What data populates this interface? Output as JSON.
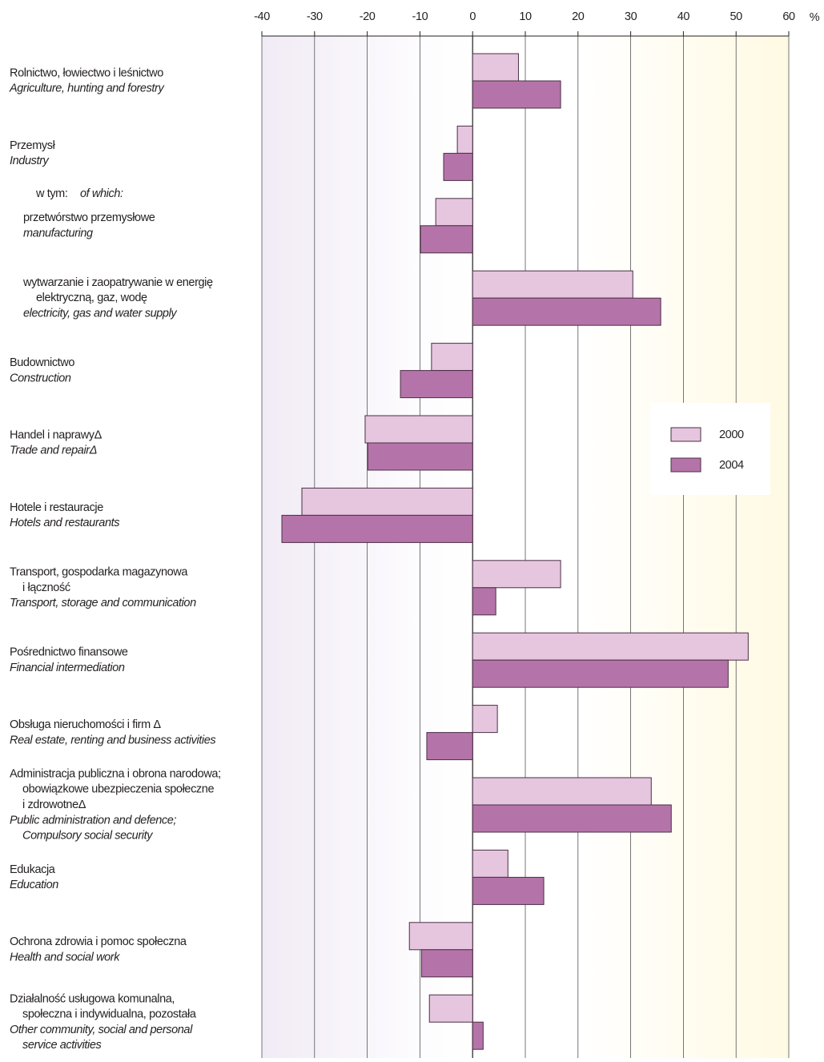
{
  "chart_data": {
    "type": "bar",
    "orientation": "horizontal",
    "x_unit": "%",
    "subheading": [
      "w tym:",
      "of which:"
    ],
    "categories": [
      "Rolnictwo, łowiectwo i leśnictwo",
      "Przemysł",
      "przetwórstwo przemysłowe",
      "wytwarzanie i zaopatrywanie w energię\nelektryczną, gaz, wodę",
      "Budownictwo",
      "Handel i naprawyΔ",
      "Hotele i restauracje",
      "Transport, gospodarka magazynowa\ni łączność",
      "Pośrednictwo finansowe",
      "Obsługa nieruchomości i firm Δ",
      "Administracja publiczna i obrona narodowa;\nobowiązkowe ubezpieczenia społeczne\ni zdrowotneΔ",
      "Edukacja",
      "Ochrona zdrowia i pomoc społeczna",
      "Działalność usługowa komunalna,\nspołeczna i indywidualna, pozostała"
    ],
    "categories_en": [
      "Agriculture, hunting and forestry",
      "Industry",
      "manufacturing",
      "electricity, gas and water supply",
      "Construction",
      "Trade and repairΔ",
      "Hotels and restaurants",
      "Transport, storage and communication",
      "Financial intermediation",
      "Real estate, renting and business activities",
      "Public administration and defence;\nCompulsory social security",
      "Education",
      "Health and social work",
      "Other community, social and personal\nservice activities"
    ],
    "series": [
      {
        "name": "2000",
        "color": "#e6c6df",
        "values": [
          8.7,
          -2.9,
          -7.0,
          30.4,
          -7.8,
          -20.4,
          -32.4,
          16.7,
          52.3,
          4.7,
          33.9,
          6.7,
          -12.0,
          -8.2
        ]
      },
      {
        "name": "2004",
        "color": "#b574a9",
        "values": [
          16.7,
          -5.5,
          -9.9,
          35.7,
          -13.7,
          -19.9,
          -36.2,
          4.4,
          48.5,
          -8.7,
          37.7,
          13.5,
          -9.7,
          2.0
        ]
      }
    ],
    "xlim": [
      -40,
      60
    ],
    "xticks": [
      -40,
      -30,
      -20,
      -10,
      0,
      10,
      20,
      30,
      40,
      50,
      60
    ],
    "grid": true
  }
}
